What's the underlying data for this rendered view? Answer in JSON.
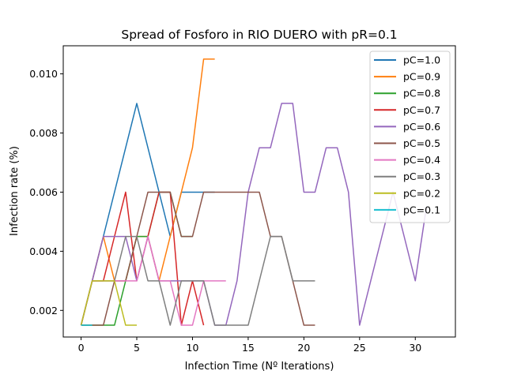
{
  "chart_data": {
    "type": "line",
    "title": "Spread of Fosforo in RIO DUERO with pR=0.1",
    "xlabel": "Infection Time (Nº Iterations)",
    "ylabel": "Infection rate (%)",
    "xlim": [
      -1.6,
      33.6
    ],
    "ylim": [
      0.0011,
      0.01095
    ],
    "xticks": [
      0,
      5,
      10,
      15,
      20,
      25,
      30
    ],
    "xtick_labels": [
      "0",
      "5",
      "10",
      "15",
      "20",
      "25",
      "30"
    ],
    "yticks": [
      0.002,
      0.004,
      0.006,
      0.008,
      0.01
    ],
    "ytick_labels": [
      "0.002",
      "0.004",
      "0.006",
      "0.008",
      "0.010"
    ],
    "grid": false,
    "legend_position": "top-right",
    "series": [
      {
        "name": "pC=1.0",
        "color": "#1f77b4",
        "x": [
          0,
          1,
          2,
          3,
          4,
          5,
          6,
          7,
          8,
          9,
          10,
          11,
          12
        ],
        "y": [
          0.0015,
          0.003,
          0.0045,
          0.006,
          0.0075,
          0.009,
          0.0075,
          0.006,
          0.0045,
          0.006,
          0.006,
          0.006,
          0.006
        ]
      },
      {
        "name": "pC=0.9",
        "color": "#ff7f0e",
        "x": [
          0,
          1,
          2,
          3,
          4,
          5,
          6,
          7,
          8,
          9,
          10,
          11,
          12
        ],
        "y": [
          0.0015,
          0.003,
          0.0045,
          0.003,
          0.003,
          0.0045,
          0.0045,
          0.003,
          0.0045,
          0.006,
          0.0075,
          0.0105,
          0.0105
        ]
      },
      {
        "name": "pC=0.8",
        "color": "#2ca02c",
        "x": [
          0,
          1,
          2,
          3,
          4,
          5,
          6,
          7,
          8,
          9,
          10
        ],
        "y": [
          0.0015,
          0.0015,
          0.0015,
          0.0015,
          0.003,
          0.0045,
          0.0045,
          0.006,
          0.006,
          0.0045,
          0.0045
        ]
      },
      {
        "name": "pC=0.7",
        "color": "#d62728",
        "x": [
          0,
          1,
          2,
          3,
          4,
          5,
          6,
          7,
          8,
          9,
          10,
          11
        ],
        "y": [
          0.0015,
          0.003,
          0.003,
          0.0045,
          0.006,
          0.003,
          0.0045,
          0.006,
          0.006,
          0.0015,
          0.003,
          0.0015
        ]
      },
      {
        "name": "pC=0.6",
        "color": "#9467bd",
        "x": [
          0,
          1,
          2,
          3,
          4,
          5,
          6,
          7,
          8,
          9,
          10,
          11,
          12,
          13,
          14,
          15,
          16,
          17,
          18,
          19,
          20,
          21,
          22,
          23,
          24,
          25,
          26,
          27,
          28,
          29,
          30,
          31
        ],
        "y": [
          0.0015,
          0.003,
          0.0045,
          0.0045,
          0.0045,
          0.003,
          0.0045,
          0.003,
          0.003,
          0.003,
          0.003,
          0.003,
          0.0015,
          0.0015,
          0.003,
          0.006,
          0.0075,
          0.0075,
          0.009,
          0.009,
          0.006,
          0.006,
          0.0075,
          0.0075,
          0.006,
          0.0015,
          0.003,
          0.0045,
          0.006,
          0.0045,
          0.003,
          0.0055
        ]
      },
      {
        "name": "pC=0.5",
        "color": "#8c564b",
        "x": [
          0,
          1,
          2,
          3,
          4,
          5,
          6,
          7,
          8,
          9,
          10,
          11,
          12,
          13,
          14,
          15,
          16,
          17,
          18,
          19,
          20,
          21
        ],
        "y": [
          0.0015,
          0.0015,
          0.0015,
          0.003,
          0.003,
          0.0045,
          0.006,
          0.006,
          0.006,
          0.0045,
          0.0045,
          0.006,
          0.006,
          0.006,
          0.006,
          0.006,
          0.006,
          0.0045,
          0.0045,
          0.003,
          0.0015,
          0.0015
        ]
      },
      {
        "name": "pC=0.4",
        "color": "#e377c2",
        "x": [
          0,
          1,
          2,
          3,
          4,
          5,
          6,
          7,
          8,
          9,
          10,
          11,
          12,
          13
        ],
        "y": [
          0.0015,
          0.003,
          0.003,
          0.003,
          0.003,
          0.003,
          0.0045,
          0.003,
          0.003,
          0.0015,
          0.0015,
          0.003,
          0.003,
          0.003
        ]
      },
      {
        "name": "pC=0.3",
        "color": "#7f7f7f",
        "x": [
          0,
          1,
          2,
          3,
          4,
          5,
          6,
          7,
          8,
          9,
          10,
          11,
          12,
          13,
          14,
          15,
          16,
          17,
          18,
          19,
          20,
          21
        ],
        "y": [
          0.0015,
          0.003,
          0.003,
          0.003,
          0.0045,
          0.0045,
          0.003,
          0.003,
          0.0015,
          0.003,
          0.003,
          0.003,
          0.0015,
          0.0015,
          0.0015,
          0.0015,
          0.003,
          0.0045,
          0.0045,
          0.003,
          0.003,
          0.003
        ]
      },
      {
        "name": "pC=0.2",
        "color": "#bcbd22",
        "x": [
          0,
          1,
          2,
          3,
          4,
          5
        ],
        "y": [
          0.0015,
          0.003,
          0.003,
          0.003,
          0.0015,
          0.0015
        ]
      },
      {
        "name": "pC=0.1",
        "color": "#17becf",
        "x": [
          0,
          1
        ],
        "y": [
          0.0015,
          0.0015
        ]
      }
    ]
  }
}
